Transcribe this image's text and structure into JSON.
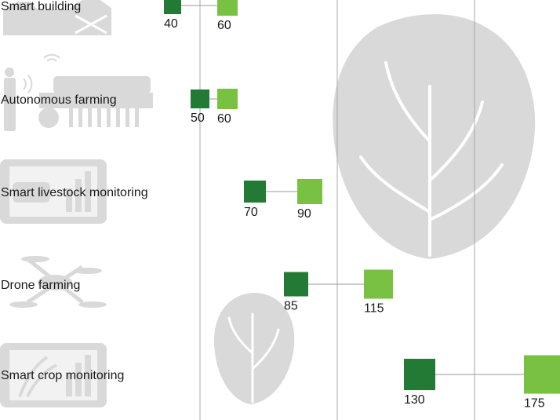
{
  "colors": {
    "low": "#237a35",
    "high": "#79c142",
    "connector": "#9a9a9a",
    "gridline": "#a8a8a8",
    "illustration": "#d9d9d9",
    "text": "#1a1a1a"
  },
  "icons": [
    "barn-icon",
    "farmer-tractor-icon",
    "cow-tablet-icon",
    "drone-icon",
    "crop-tablet-icon",
    "lettuce-illustration"
  ],
  "chart_data": {
    "type": "dumbbell",
    "categories": [
      "Smart building",
      "Autonomous farming",
      "Smart livestock monitoring",
      "Drone farming",
      "Smart crop monitoring"
    ],
    "series": [
      {
        "values": [
          40,
          50,
          70,
          85,
          130
        ]
      },
      {
        "values": [
          60,
          60,
          90,
          115,
          175
        ]
      }
    ],
    "grid": true
  }
}
